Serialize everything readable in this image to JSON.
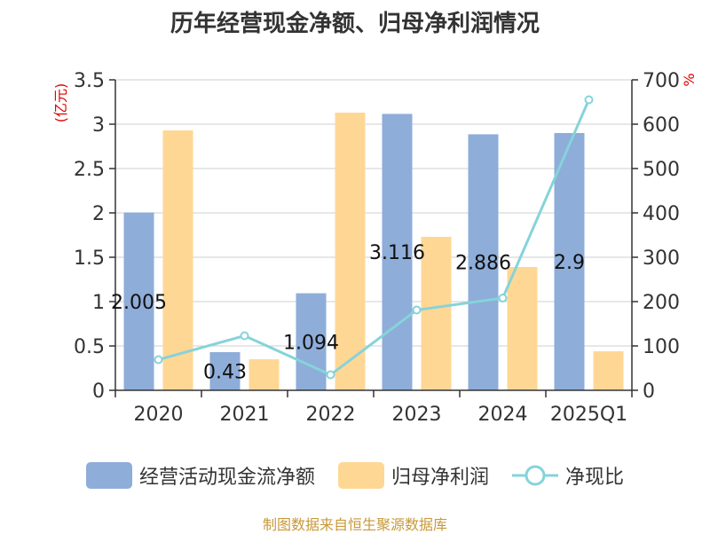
{
  "chart_data": {
    "type": "bar",
    "title": "历年经营现金净额、归母净利润情况",
    "categories": [
      "2020",
      "2021",
      "2022",
      "2023",
      "2024",
      "2025Q1"
    ],
    "series": [
      {
        "name": "经营活动现金流净额",
        "type": "bar",
        "axis": "left",
        "color": "#8eadd9",
        "values": [
          2.005,
          0.43,
          1.094,
          3.116,
          2.886,
          2.9
        ],
        "data_labels": [
          "2.005",
          "0.43",
          "1.094",
          "3.116",
          "2.886",
          "2.9"
        ]
      },
      {
        "name": "归母净利润",
        "type": "bar",
        "axis": "left",
        "color": "#ffd794",
        "values": [
          2.93,
          0.35,
          3.13,
          1.73,
          1.39,
          0.44
        ]
      },
      {
        "name": "净现比",
        "type": "line",
        "axis": "right",
        "color": "#86d3da",
        "values": [
          69,
          123,
          35,
          181,
          208,
          655
        ]
      }
    ],
    "y_left": {
      "label": "(亿元)",
      "min": 0,
      "max": 3.5,
      "ticks": [
        "0",
        "0.5",
        "1",
        "1.5",
        "2",
        "2.5",
        "3",
        "3.5"
      ]
    },
    "y_right": {
      "label": "%",
      "min": 0,
      "max": 700,
      "ticks": [
        "0",
        "100",
        "200",
        "300",
        "400",
        "500",
        "600",
        "700"
      ]
    },
    "grid": true,
    "legend_position": "bottom"
  },
  "source": "制图数据来自恒生聚源数据库"
}
